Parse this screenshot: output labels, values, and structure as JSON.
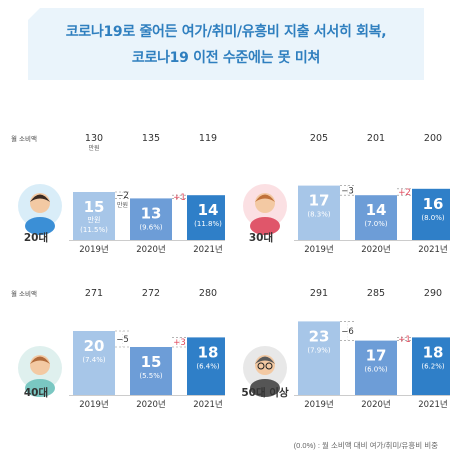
{
  "title": {
    "line1": "코로나19로 줄어든 여가/취미/유흥비 지출 서서히 회복,",
    "line2": "코로나19 이전 수준에는 못 미쳐"
  },
  "footnote": "(0.0%) : 월 소비액 대비 여가/취미/유흥비 비중",
  "colors": {
    "bar_2019": "#a7c6e8",
    "bar_2020": "#6d9dd7",
    "bar_2021": "#2f7fc8",
    "title": "#2f7fbf",
    "increase": "#e14a5c",
    "decrease": "#333333"
  },
  "chart_data": [
    {
      "type": "bar",
      "group": "20대",
      "monthly_spend_label": "월 소비액",
      "categories": [
        "2019년",
        "2020년",
        "2021년"
      ],
      "monthly_spend": [
        "130",
        "135",
        "119"
      ],
      "spend_unit": "만원",
      "values": [
        15,
        13,
        14
      ],
      "value_unit": "만원",
      "shares": [
        "(11.5%)",
        "(9.6%)",
        "(11.8%)"
      ],
      "changes": [
        "−2",
        "+1"
      ],
      "change_units": [
        "만원",
        ""
      ]
    },
    {
      "type": "bar",
      "group": "30대",
      "categories": [
        "2019년",
        "2020년",
        "2021년"
      ],
      "monthly_spend": [
        "205",
        "201",
        "200"
      ],
      "values": [
        17,
        14,
        16
      ],
      "shares": [
        "(8.3%)",
        "(7.0%)",
        "(8.0%)"
      ],
      "changes": [
        "−3",
        "+2"
      ]
    },
    {
      "type": "bar",
      "group": "40대",
      "monthly_spend_label": "월 소비액",
      "categories": [
        "2019년",
        "2020년",
        "2021년"
      ],
      "monthly_spend": [
        "271",
        "272",
        "280"
      ],
      "values": [
        20,
        15,
        18
      ],
      "shares": [
        "(7.4%)",
        "(5.5%)",
        "(6.4%)"
      ],
      "changes": [
        "−5",
        "+3"
      ]
    },
    {
      "type": "bar",
      "group": "50대 이상",
      "categories": [
        "2019년",
        "2020년",
        "2021년"
      ],
      "monthly_spend": [
        "291",
        "285",
        "290"
      ],
      "values": [
        23,
        17,
        18
      ],
      "shares": [
        "(7.9%)",
        "(6.0%)",
        "(6.2%)"
      ],
      "changes": [
        "−6",
        "+1"
      ]
    }
  ]
}
